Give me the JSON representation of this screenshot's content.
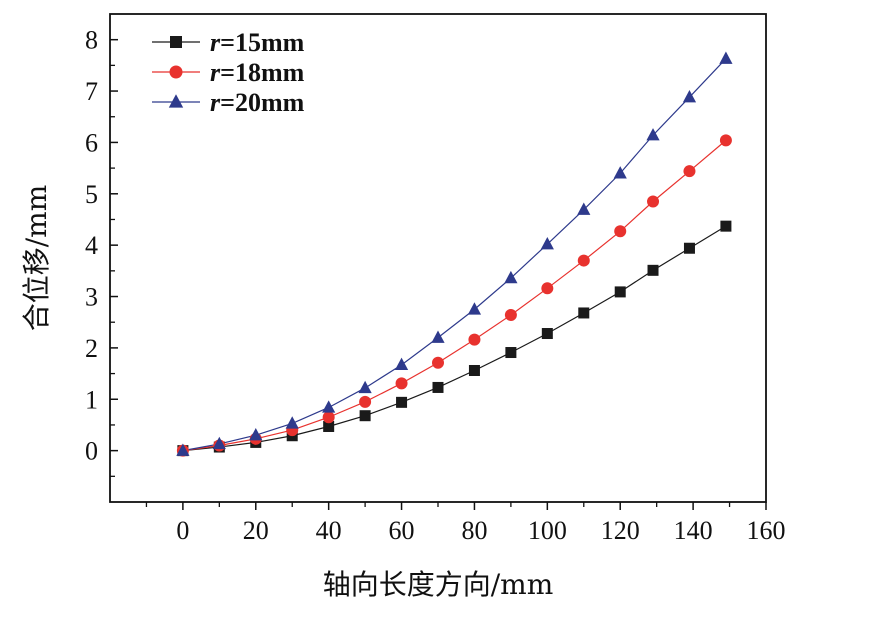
{
  "chart_data": {
    "type": "line",
    "xlabel": "轴向长度方向/mm",
    "ylabel": "合位移/mm",
    "xlim": [
      -20,
      160
    ],
    "ylim": [
      -1,
      8.5
    ],
    "xticks": [
      0,
      20,
      40,
      60,
      80,
      100,
      120,
      140,
      160
    ],
    "yticks": [
      0,
      1,
      2,
      3,
      4,
      5,
      6,
      7,
      8
    ],
    "grid": false,
    "legend_position": "top-left",
    "series": [
      {
        "name": "r=15mm",
        "name_italic": "r",
        "name_rest": "=15mm",
        "color": "#1a1a1a",
        "marker": "square",
        "x": [
          0,
          10,
          20,
          30,
          40,
          50,
          60,
          70,
          80,
          90,
          100,
          110,
          120,
          129,
          139,
          149
        ],
        "y": [
          0.0,
          0.07,
          0.16,
          0.29,
          0.47,
          0.68,
          0.94,
          1.23,
          1.56,
          1.91,
          2.28,
          2.68,
          3.09,
          3.51,
          3.94,
          4.37
        ]
      },
      {
        "name": "r=18mm",
        "name_italic": "r",
        "name_rest": "=18mm",
        "color": "#e8322e",
        "marker": "circle",
        "x": [
          0,
          10,
          20,
          30,
          40,
          50,
          60,
          70,
          80,
          90,
          100,
          110,
          120,
          129,
          139,
          149
        ],
        "y": [
          0.0,
          0.1,
          0.23,
          0.4,
          0.65,
          0.95,
          1.31,
          1.71,
          2.16,
          2.64,
          3.16,
          3.7,
          4.27,
          4.85,
          5.44,
          6.04
        ]
      },
      {
        "name": "r=20mm",
        "name_italic": "r",
        "name_rest": "=20mm",
        "color": "#2e3a8c",
        "marker": "triangle",
        "x": [
          0,
          10,
          20,
          30,
          40,
          50,
          60,
          70,
          80,
          90,
          100,
          110,
          120,
          129,
          139,
          149
        ],
        "y": [
          0.0,
          0.13,
          0.3,
          0.53,
          0.84,
          1.22,
          1.67,
          2.2,
          2.75,
          3.36,
          4.02,
          4.69,
          5.4,
          6.14,
          6.88,
          7.63
        ]
      }
    ]
  }
}
